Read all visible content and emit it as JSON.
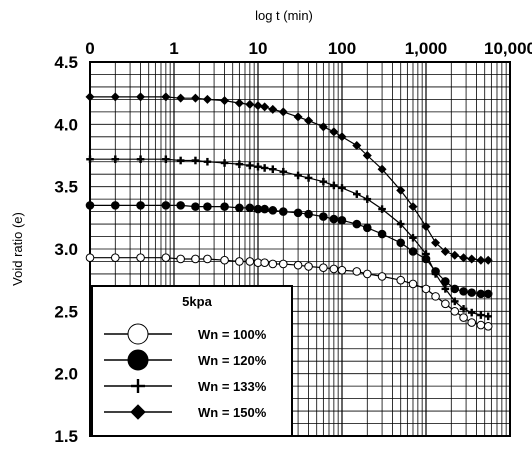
{
  "chart_data": {
    "type": "line",
    "title": "",
    "xlabel": "log t (min)",
    "ylabel": "Void ratio (e)",
    "x_scale": "log",
    "x_ticks": [
      {
        "value": 0.1,
        "label": "0"
      },
      {
        "value": 1,
        "label": "1"
      },
      {
        "value": 10,
        "label": "10"
      },
      {
        "value": 100,
        "label": "100"
      },
      {
        "value": 1000,
        "label": "1,000"
      },
      {
        "value": 10000,
        "label": "10,000"
      }
    ],
    "xlim": [
      0.1,
      10000
    ],
    "ylim": [
      1.5,
      4.5
    ],
    "y_ticks": [
      1.5,
      2.0,
      2.5,
      3.0,
      3.5,
      4.0,
      4.5
    ],
    "y_tick_labels": [
      "1.5",
      "2.0",
      "2.5",
      "3.0",
      "3.5",
      "4.0",
      "4.5"
    ],
    "grid": true,
    "legend": {
      "title": "5kpa",
      "position": "bottom-left"
    },
    "series": [
      {
        "name": "Wn = 100%",
        "marker": "circle-open",
        "x": [
          0.1,
          0.2,
          0.4,
          0.8,
          1.2,
          1.8,
          2.5,
          4,
          6,
          8,
          10,
          12,
          15,
          20,
          30,
          40,
          60,
          80,
          100,
          150,
          200,
          300,
          500,
          700,
          1000,
          1300,
          1700,
          2200,
          2800,
          3500,
          4500,
          5500
        ],
        "y": [
          2.93,
          2.93,
          2.93,
          2.93,
          2.92,
          2.92,
          2.92,
          2.91,
          2.9,
          2.9,
          2.89,
          2.89,
          2.88,
          2.88,
          2.87,
          2.86,
          2.85,
          2.84,
          2.83,
          2.82,
          2.8,
          2.78,
          2.75,
          2.72,
          2.68,
          2.62,
          2.56,
          2.5,
          2.45,
          2.41,
          2.39,
          2.38
        ]
      },
      {
        "name": "Wn = 120%",
        "marker": "circle-filled",
        "x": [
          0.1,
          0.2,
          0.4,
          0.8,
          1.2,
          1.8,
          2.5,
          4,
          6,
          8,
          10,
          12,
          15,
          20,
          30,
          40,
          60,
          80,
          100,
          150,
          200,
          300,
          500,
          700,
          1000,
          1300,
          1700,
          2200,
          2800,
          3500,
          4500,
          5500
        ],
        "y": [
          3.35,
          3.35,
          3.35,
          3.35,
          3.35,
          3.34,
          3.34,
          3.34,
          3.33,
          3.33,
          3.32,
          3.32,
          3.31,
          3.3,
          3.29,
          3.28,
          3.26,
          3.24,
          3.23,
          3.2,
          3.17,
          3.12,
          3.05,
          2.98,
          2.92,
          2.82,
          2.74,
          2.68,
          2.66,
          2.65,
          2.64,
          2.64
        ]
      },
      {
        "name": "Wn = 133%",
        "marker": "plus",
        "x": [
          0.1,
          0.2,
          0.4,
          0.8,
          1.2,
          1.8,
          2.5,
          4,
          6,
          8,
          10,
          12,
          15,
          20,
          30,
          40,
          60,
          80,
          100,
          150,
          200,
          300,
          500,
          700,
          1000,
          1300,
          1700,
          2200,
          2800,
          3500,
          4500,
          5500
        ],
        "y": [
          3.72,
          3.72,
          3.72,
          3.72,
          3.71,
          3.71,
          3.7,
          3.69,
          3.68,
          3.67,
          3.66,
          3.65,
          3.64,
          3.62,
          3.59,
          3.57,
          3.54,
          3.51,
          3.49,
          3.44,
          3.4,
          3.32,
          3.2,
          3.09,
          2.96,
          2.8,
          2.68,
          2.58,
          2.52,
          2.49,
          2.47,
          2.46
        ]
      },
      {
        "name": "Wn = 150%",
        "marker": "diamond-dot",
        "x": [
          0.1,
          0.2,
          0.4,
          0.8,
          1.2,
          1.8,
          2.5,
          4,
          6,
          8,
          10,
          12,
          15,
          20,
          30,
          40,
          60,
          80,
          100,
          150,
          200,
          300,
          500,
          700,
          1000,
          1300,
          1700,
          2200,
          2800,
          3500,
          4500,
          5500
        ],
        "y": [
          4.22,
          4.22,
          4.22,
          4.22,
          4.21,
          4.21,
          4.2,
          4.19,
          4.17,
          4.16,
          4.15,
          4.14,
          4.12,
          4.1,
          4.06,
          4.03,
          3.98,
          3.94,
          3.9,
          3.83,
          3.75,
          3.64,
          3.47,
          3.34,
          3.18,
          3.05,
          2.98,
          2.95,
          2.93,
          2.92,
          2.91,
          2.91
        ]
      }
    ]
  }
}
